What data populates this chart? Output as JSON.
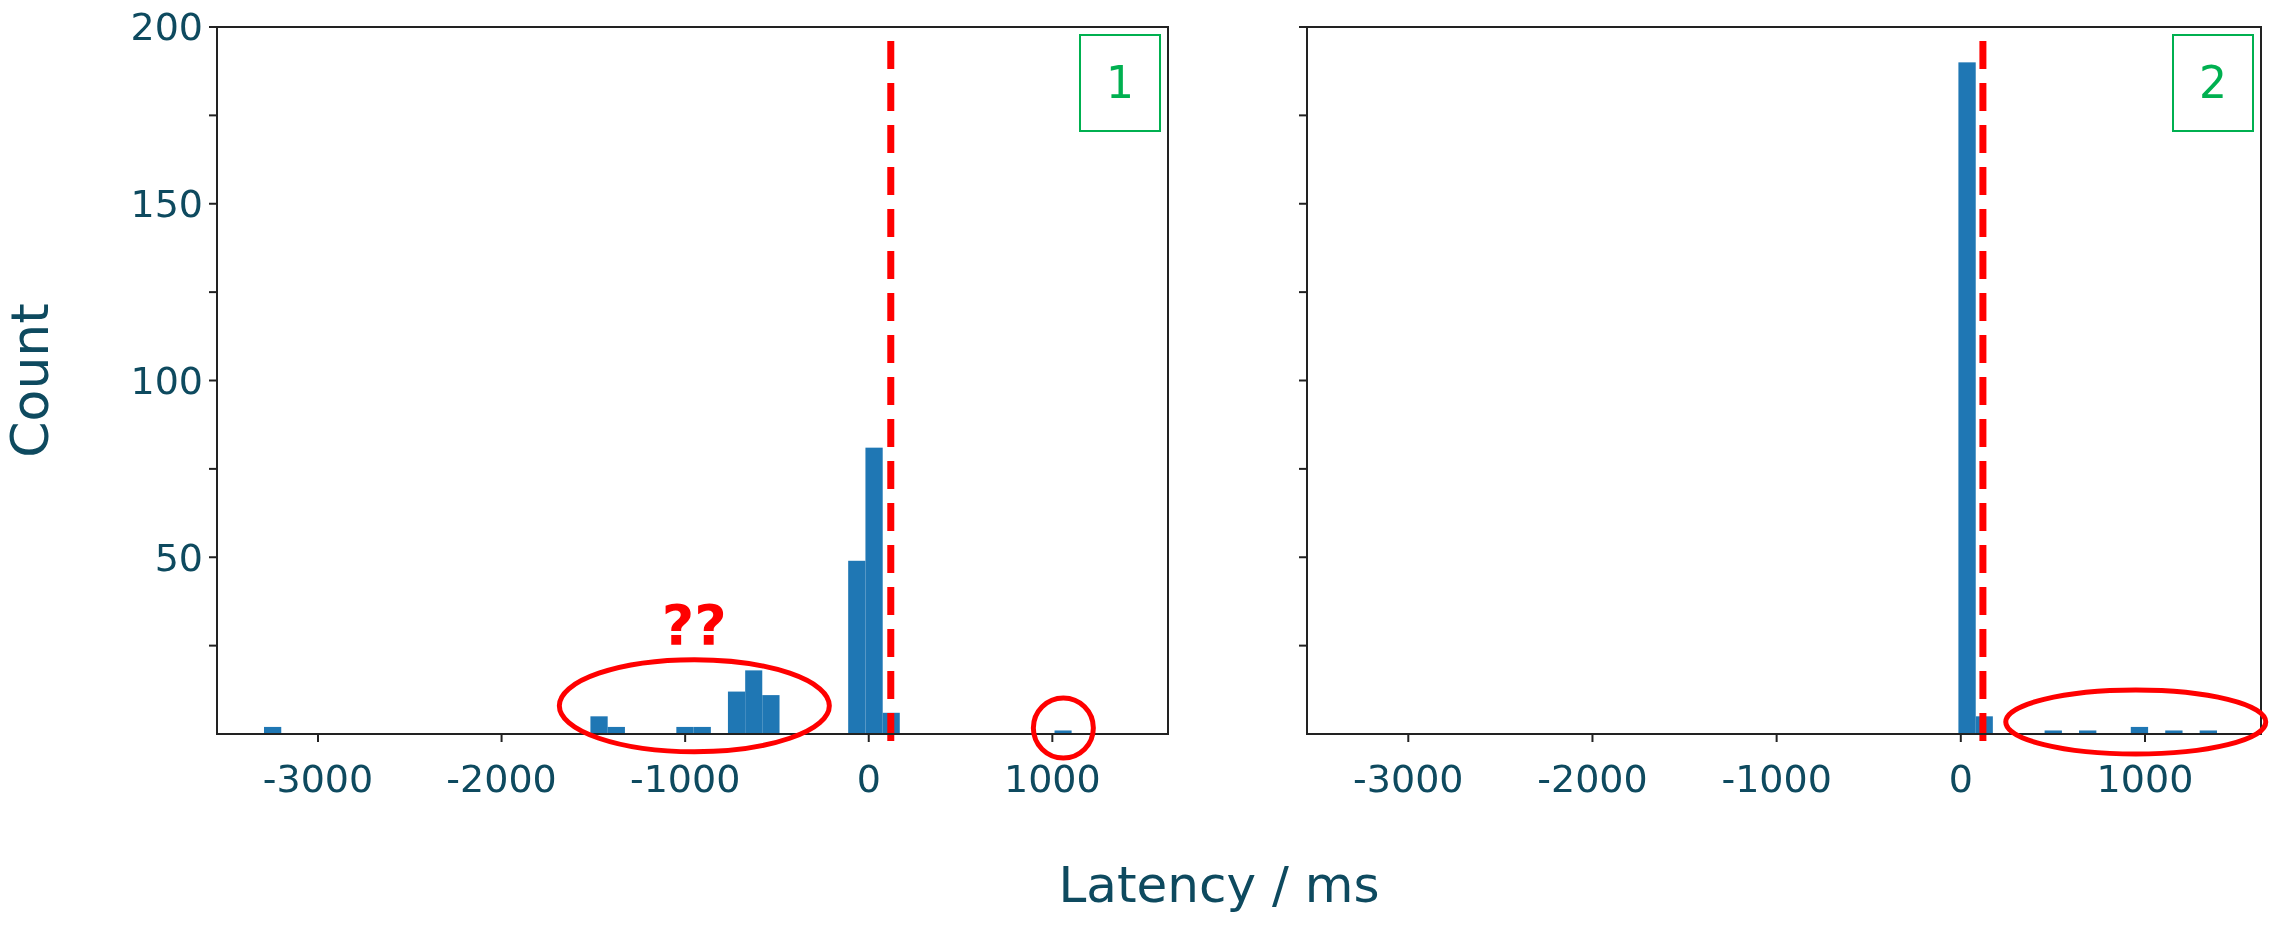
{
  "chart_data": [
    {
      "type": "histogram",
      "ylabel": "Count",
      "xlabel": "Latency / ms",
      "bins": [
        -3294,
        -3200,
        -3107,
        -3013,
        -2920,
        -2826,
        -2732,
        -2639,
        -2545,
        -2452,
        -2358,
        -2264,
        -2171,
        -2077,
        -1984,
        -1890,
        -1796,
        -1703,
        -1609,
        -1516,
        -1422,
        -1328,
        -1235,
        -1141,
        -1048,
        -954,
        -860,
        -767,
        -673,
        -580,
        -486,
        -392,
        -299,
        -205,
        -112,
        -18,
        76,
        169,
        263,
        356,
        450,
        544,
        637,
        731,
        824,
        918,
        1012,
        1105
      ],
      "values": [
        2,
        0,
        0,
        0,
        0,
        0,
        0,
        0,
        0,
        0,
        0,
        0,
        0,
        0,
        0,
        0,
        0,
        0,
        0,
        5,
        2,
        0,
        0,
        0,
        2,
        2,
        0,
        12,
        18,
        11,
        0,
        0,
        0,
        0,
        49,
        81,
        6,
        0,
        0,
        0,
        0,
        0,
        0,
        0,
        0,
        0,
        1
      ],
      "color": "#1f77b4",
      "xlim": [
        -3550,
        1630
      ],
      "xticks": [
        -3000,
        -2000,
        -1000,
        0,
        1000
      ],
      "ylim": [
        0,
        200
      ],
      "yticks": [
        {
          "value": 25,
          "label": null
        },
        50,
        {
          "value": 75,
          "label": null
        },
        100,
        {
          "value": 125,
          "label": null
        },
        150,
        {
          "value": 175,
          "label": null
        },
        200
      ],
      "ref_lines": [
        {
          "axis": "x",
          "value": 120,
          "color": "#ff0000",
          "line_style": "dashed"
        }
      ],
      "annotations": [
        "1",
        "??"
      ],
      "grid": false
    },
    {
      "type": "histogram",
      "bins": [
        -13,
        81,
        174,
        268,
        361,
        455,
        549,
        642,
        736,
        829,
        923,
        1017,
        1110,
        1204,
        1297,
        1391
      ],
      "values": [
        190,
        5,
        0,
        0,
        0,
        1,
        0,
        1,
        0,
        0,
        2,
        0,
        1,
        0,
        1
      ],
      "color": "#1f77b4",
      "xlim": [
        -3550,
        1630
      ],
      "xticks": [
        -3000,
        -2000,
        -1000,
        0,
        1000
      ],
      "ylim": [
        0,
        200
      ],
      "yticks": [
        {
          "value": 25,
          "label": null
        },
        50,
        {
          "value": 75,
          "label": null
        },
        100,
        {
          "value": 125,
          "label": null
        },
        150,
        {
          "value": 175,
          "label": null
        },
        200
      ],
      "tick_labels": "x",
      "ref_lines": [
        {
          "axis": "x",
          "value": 120,
          "color": "#ff0000",
          "line_style": "dashed"
        }
      ],
      "annotations": [
        "2"
      ],
      "grid": false
    }
  ]
}
